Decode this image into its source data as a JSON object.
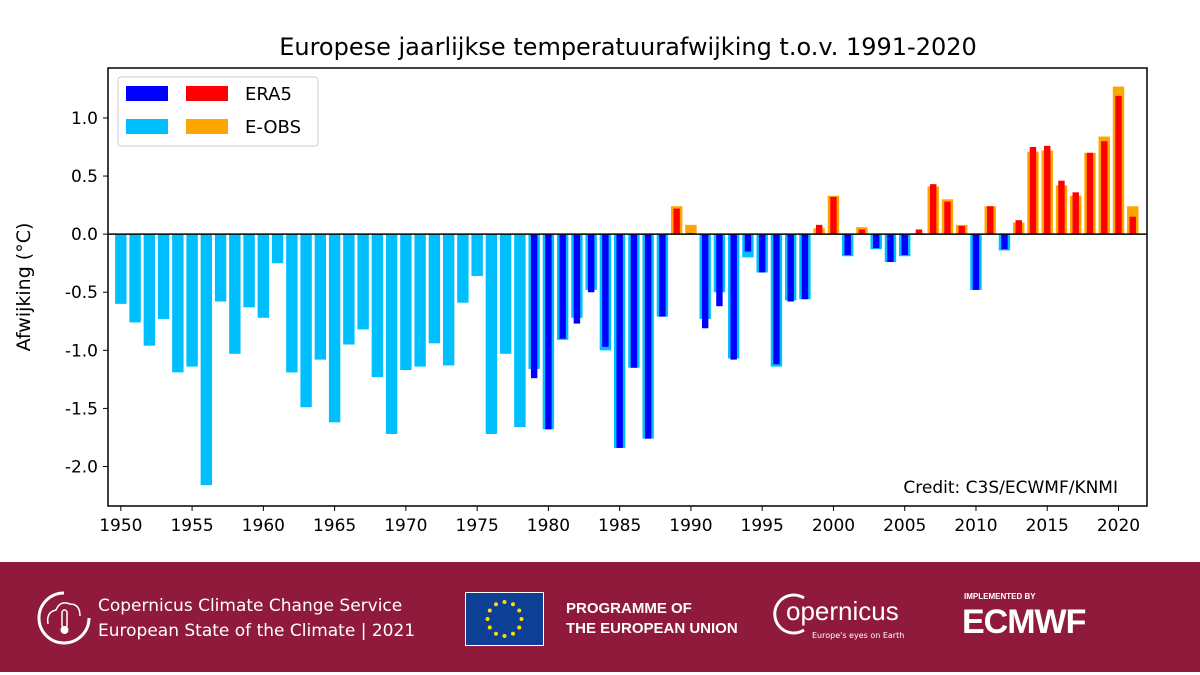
{
  "chart_data": {
    "type": "bar",
    "title": "Europese jaarlijkse temperatuurafwijking t.o.v. 1991-2020",
    "xlabel": "",
    "ylabel": "Afwijking (°C)",
    "ylim": [
      -2.34,
      1.43
    ],
    "xlim": [
      1949.1,
      2022.0
    ],
    "yticks": [
      1.0,
      0.5,
      0.0,
      -0.5,
      -1.0,
      -1.5,
      -2.0
    ],
    "ytick_labels": [
      "1.0",
      "0.5",
      "0.0",
      "-0.5",
      "-1.0",
      "-1.5",
      "-2.0"
    ],
    "xticks": [
      1950,
      1955,
      1960,
      1965,
      1970,
      1975,
      1980,
      1985,
      1990,
      1995,
      2000,
      2005,
      2010,
      2015,
      2020
    ],
    "xtick_labels": [
      "1950",
      "1955",
      "1960",
      "1965",
      "1970",
      "1975",
      "1980",
      "1985",
      "1990",
      "1995",
      "2000",
      "2005",
      "2010",
      "2015",
      "2020"
    ],
    "legend": {
      "placement": "top-left",
      "entries": [
        "ERA5",
        "E-OBS"
      ]
    },
    "annotation": "Credit: C3S/ECWMF/KNMI",
    "colors": {
      "era5_neg": "#0000ff",
      "era5_pos": "#ff0000",
      "eobs_neg": "#00bfff",
      "eobs_pos": "#ffa500"
    },
    "series": [
      {
        "name": "E-OBS",
        "start_year": 1950,
        "values": [
          -0.6,
          -0.76,
          -0.96,
          -0.73,
          -1.19,
          -1.14,
          -2.16,
          -0.58,
          -1.03,
          -0.63,
          -0.72,
          -0.25,
          -1.19,
          -1.49,
          -1.08,
          -1.62,
          -0.95,
          -0.82,
          -1.23,
          -1.72,
          -1.17,
          -1.14,
          -0.94,
          -1.13,
          -0.59,
          -0.36,
          -1.72,
          -1.03,
          -1.66,
          -1.16,
          -1.68,
          -0.91,
          -0.72,
          -0.48,
          -1.0,
          -1.84,
          -1.15,
          -1.76,
          -0.71,
          0.24,
          0.08,
          -0.73,
          -0.5,
          -1.07,
          -0.2,
          -0.33,
          -1.14,
          -0.57,
          -0.56,
          0.05,
          0.33,
          -0.19,
          0.06,
          -0.13,
          -0.24,
          -0.19,
          0.01,
          0.41,
          0.3,
          0.08,
          -0.48,
          0.24,
          -0.14,
          0.1,
          0.71,
          0.72,
          0.42,
          0.33,
          0.7,
          0.84,
          1.27,
          0.24
        ]
      },
      {
        "name": "ERA5",
        "start_year": 1979,
        "values": [
          -1.24,
          -1.68,
          -0.9,
          -0.77,
          -0.5,
          -0.97,
          -1.84,
          -1.15,
          -1.76,
          -0.71,
          0.22,
          0.01,
          -0.81,
          -0.62,
          -1.08,
          -0.15,
          -0.33,
          -1.12,
          -0.58,
          -0.56,
          0.08,
          0.32,
          -0.18,
          0.04,
          -0.12,
          -0.24,
          -0.18,
          0.04,
          0.43,
          0.28,
          0.07,
          -0.48,
          0.24,
          -0.13,
          0.12,
          0.75,
          0.76,
          0.46,
          0.36,
          0.7,
          0.8,
          1.19,
          0.15
        ]
      }
    ]
  },
  "footer": {
    "c3s_line1": "Copernicus Climate Change Service",
    "c3s_line2": "European State of the Climate | 2021",
    "eu_line1": "PROGRAMME OF",
    "eu_line2": "THE EUROPEAN UNION",
    "copernicus_logo": "opernicus",
    "copernicus_tagline": "Europe's eyes on Earth",
    "ecmwf_small": "IMPLEMENTED BY",
    "ecmwf_logo": "ECMWF"
  }
}
